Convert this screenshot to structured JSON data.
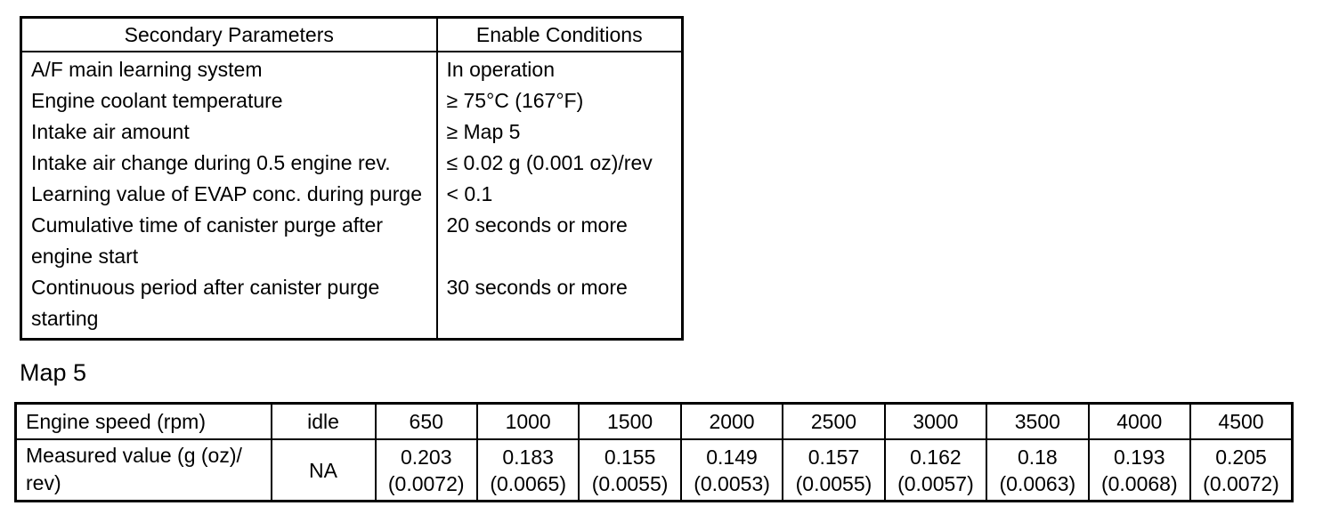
{
  "page": {
    "background": "#ffffff",
    "text_color": "#000000",
    "border_color": "#000000"
  },
  "conditions_table": {
    "headers": [
      "Secondary Parameters",
      "Enable Conditions"
    ],
    "rows": [
      {
        "parameter": "A/F main learning system",
        "condition": "In operation"
      },
      {
        "parameter": "Engine coolant temperature",
        "condition": "≥ 75°C (167°F)"
      },
      {
        "parameter": "Intake air amount",
        "condition": "≥ Map 5"
      },
      {
        "parameter": "Intake air change during 0.5 engine rev.",
        "condition": "≤ 0.02 g (0.001 oz)/rev"
      },
      {
        "parameter": "Learning value of EVAP conc. during purge",
        "condition": "< 0.1"
      },
      {
        "parameter": "Cumulative time of canister purge after engine start",
        "condition": "20 seconds or more"
      },
      {
        "parameter": "Continuous period after canister purge starting",
        "condition": "30 seconds or more"
      }
    ]
  },
  "map_title": "Map 5",
  "map_table": {
    "row1_label": "Engine speed (rpm)",
    "row2_label": "Measured value (g (oz)/ rev)",
    "speeds": [
      "idle",
      "650",
      "1000",
      "1500",
      "2000",
      "2500",
      "3000",
      "3500",
      "4000",
      "4500"
    ],
    "values": [
      {
        "main": "NA",
        "sub": ""
      },
      {
        "main": "0.203",
        "sub": "(0.0072)"
      },
      {
        "main": "0.183",
        "sub": "(0.0065)"
      },
      {
        "main": "0.155",
        "sub": "(0.0055)"
      },
      {
        "main": "0.149",
        "sub": "(0.0053)"
      },
      {
        "main": "0.157",
        "sub": "(0.0055)"
      },
      {
        "main": "0.162",
        "sub": "(0.0057)"
      },
      {
        "main": "0.18",
        "sub": "(0.0063)"
      },
      {
        "main": "0.193",
        "sub": "(0.0068)"
      },
      {
        "main": "0.205",
        "sub": "(0.0072)"
      }
    ]
  }
}
